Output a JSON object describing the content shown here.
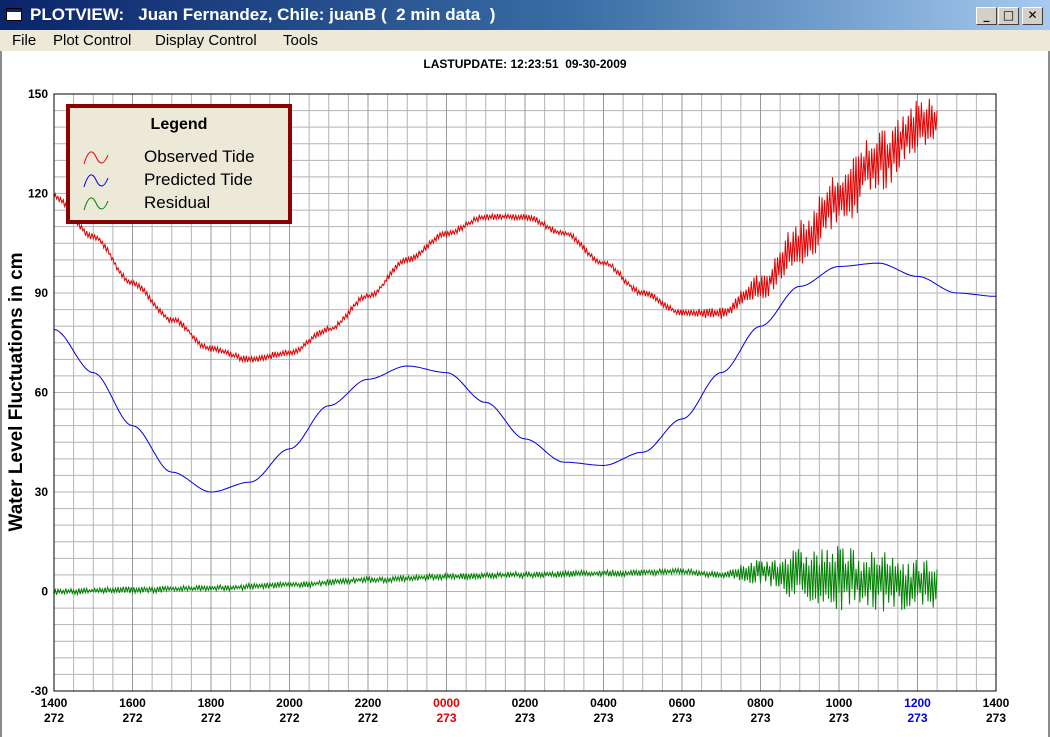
{
  "window": {
    "title": "PLOTVIEW:   Juan Fernandez, Chile: juanB (  2 min data  )",
    "buttons": {
      "minimize": "_",
      "maximize": "□",
      "close": "✕"
    }
  },
  "menu": [
    "File",
    "Plot Control",
    "Display Control",
    "Tools"
  ],
  "last_update": "LASTUPDATE: 12:23:51  09-30-2009",
  "legend": {
    "title": "Legend",
    "entries": [
      "Observed Tide",
      "Predicted Tide",
      "Residual"
    ]
  },
  "colors": {
    "observed": "#e00000",
    "predicted": "#0000e0",
    "residual": "#008000",
    "grid": "#b4b4b4",
    "legend_border": "#8b0000",
    "highlight_day_start": "#e00000",
    "highlight_current": "#0000e0"
  },
  "chart_data": {
    "type": "line",
    "title": "LASTUPDATE: 12:23:51  09-30-2009",
    "ylabel": "Water Level Fluctuations in cm",
    "xlabel": "",
    "ylim": [
      -30,
      150
    ],
    "yticks": [
      150,
      120,
      90,
      60,
      30,
      0,
      -30
    ],
    "grid": true,
    "legend_position": "top-left",
    "xticks": [
      {
        "time": "1400",
        "day": "272",
        "color": "#000000"
      },
      {
        "time": "1600",
        "day": "272",
        "color": "#000000"
      },
      {
        "time": "1800",
        "day": "272",
        "color": "#000000"
      },
      {
        "time": "2000",
        "day": "272",
        "color": "#000000"
      },
      {
        "time": "2200",
        "day": "272",
        "color": "#000000"
      },
      {
        "time": "0000",
        "day": "273",
        "color": "#e00000"
      },
      {
        "time": "0200",
        "day": "273",
        "color": "#000000"
      },
      {
        "time": "0400",
        "day": "273",
        "color": "#000000"
      },
      {
        "time": "0600",
        "day": "273",
        "color": "#000000"
      },
      {
        "time": "0800",
        "day": "273",
        "color": "#000000"
      },
      {
        "time": "1000",
        "day": "273",
        "color": "#000000"
      },
      {
        "time": "1200",
        "day": "273",
        "color": "#0000e0"
      },
      {
        "time": "1400",
        "day": "273",
        "color": "#000000"
      }
    ],
    "x_units": "hours after 1400 on day 272",
    "series": [
      {
        "name": "Observed Tide",
        "color": "#e00000",
        "x": [
          0,
          1,
          2,
          3,
          4,
          5,
          6,
          7,
          8,
          9,
          10,
          11,
          12,
          13,
          14,
          15,
          16,
          17,
          18,
          19,
          20,
          21,
          22,
          22.5
        ],
        "y": [
          119,
          107,
          93,
          82,
          73,
          70,
          72,
          79,
          89,
          100,
          108,
          113,
          113,
          108,
          99,
          90,
          84,
          84,
          92,
          105,
          118,
          130,
          140,
          142
        ],
        "noise_cm": [
          1,
          1,
          1,
          1,
          1,
          1,
          1,
          1,
          1,
          1,
          1,
          1,
          1,
          1,
          1,
          1,
          1,
          2,
          4,
          7,
          9,
          10,
          8,
          7
        ]
      },
      {
        "name": "Predicted Tide",
        "color": "#0000e0",
        "x": [
          0,
          1,
          2,
          3,
          4,
          5,
          6,
          7,
          8,
          9,
          10,
          11,
          12,
          13,
          14,
          15,
          16,
          17,
          18,
          19,
          20,
          21,
          22,
          23,
          24
        ],
        "y": [
          79,
          66,
          50,
          36,
          30,
          33,
          43,
          56,
          64,
          68,
          66,
          57,
          46,
          39,
          38,
          42,
          52,
          66,
          80,
          92,
          98,
          99,
          95,
          90,
          89
        ]
      },
      {
        "name": "Residual",
        "color": "#008000",
        "x": [
          0,
          2,
          4,
          6,
          8,
          10,
          12,
          14,
          16,
          17,
          18,
          19,
          20,
          21,
          22,
          22.5
        ],
        "y": [
          0,
          0.5,
          1,
          2,
          3.5,
          4.5,
          5,
          5.5,
          6,
          5,
          6,
          5,
          4,
          3,
          2,
          2
        ],
        "noise_cm": [
          1,
          1,
          1,
          1,
          1,
          1,
          1,
          1,
          1,
          1,
          4,
          8,
          10,
          9,
          8,
          8
        ]
      }
    ]
  }
}
